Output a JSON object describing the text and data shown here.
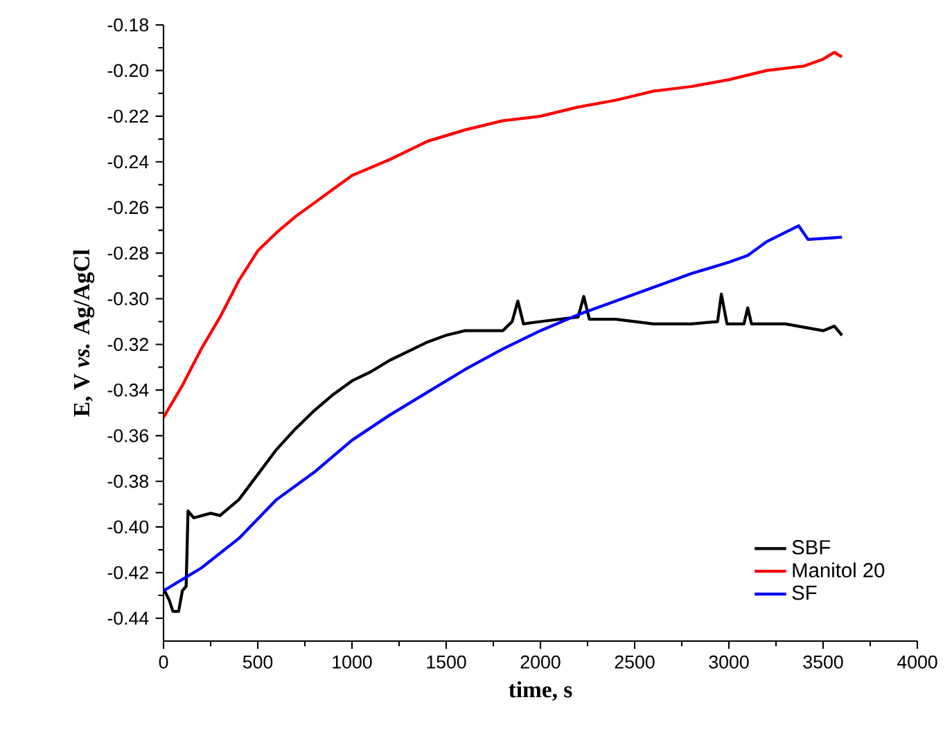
{
  "chart_data": {
    "type": "line",
    "xlabel": "time, s",
    "ylabel": "E, V *vs.* Ag/AgCl",
    "xlim": [
      0,
      4000
    ],
    "ylim": [
      -0.45,
      -0.18
    ],
    "xticks": [
      0,
      500,
      1000,
      1500,
      2000,
      2500,
      3000,
      3500,
      4000
    ],
    "yticks": [
      {
        "value": -0.44,
        "label": "-0.44"
      },
      {
        "value": -0.42,
        "label": "-0.42"
      },
      {
        "value": -0.4,
        "label": "-0.40"
      },
      {
        "value": -0.38,
        "label": "-0.38"
      },
      {
        "value": -0.36,
        "label": "-0.36"
      },
      {
        "value": -0.34,
        "label": "-0.34"
      },
      {
        "value": -0.32,
        "label": "-0.32"
      },
      {
        "value": -0.3,
        "label": "-0.30"
      },
      {
        "value": -0.28,
        "label": "-0.28"
      },
      {
        "value": -0.26,
        "label": "-0.26"
      },
      {
        "value": -0.24,
        "label": "-0.24"
      },
      {
        "value": -0.22,
        "label": "-0.22"
      },
      {
        "value": -0.2,
        "label": "-0.20"
      },
      {
        "value": -0.18,
        "label": "-0.18"
      }
    ],
    "grid": false,
    "legend": "bottom right",
    "marker": "none",
    "line_style": "solid",
    "series": [
      {
        "name": "SBF",
        "color": "#000000",
        "x": [
          0,
          30,
          50,
          80,
          100,
          120,
          130,
          160,
          250,
          300,
          400,
          500,
          600,
          700,
          800,
          900,
          1000,
          1100,
          1200,
          1300,
          1400,
          1500,
          1600,
          1800,
          1850,
          1880,
          1910,
          2000,
          2200,
          2230,
          2260,
          2400,
          2600,
          2800,
          2940,
          2960,
          2990,
          3080,
          3100,
          3120,
          3300,
          3500,
          3560,
          3600
        ],
        "values": [
          -0.427,
          -0.432,
          -0.437,
          -0.437,
          -0.428,
          -0.426,
          -0.393,
          -0.396,
          -0.394,
          -0.395,
          -0.388,
          -0.377,
          -0.366,
          -0.357,
          -0.349,
          -0.342,
          -0.336,
          -0.332,
          -0.327,
          -0.323,
          -0.319,
          -0.316,
          -0.314,
          -0.314,
          -0.31,
          -0.301,
          -0.311,
          -0.31,
          -0.308,
          -0.299,
          -0.309,
          -0.309,
          -0.311,
          -0.311,
          -0.31,
          -0.298,
          -0.311,
          -0.311,
          -0.304,
          -0.311,
          -0.311,
          -0.314,
          -0.312,
          -0.316
        ]
      },
      {
        "name": "Manitol 20",
        "color": "#ff0000",
        "x": [
          0,
          100,
          200,
          300,
          400,
          500,
          600,
          700,
          800,
          900,
          1000,
          1200,
          1400,
          1600,
          1800,
          2000,
          2200,
          2400,
          2600,
          2800,
          3000,
          3200,
          3400,
          3500,
          3560,
          3600
        ],
        "values": [
          -0.352,
          -0.338,
          -0.322,
          -0.308,
          -0.292,
          -0.279,
          -0.271,
          -0.264,
          -0.258,
          -0.252,
          -0.246,
          -0.239,
          -0.231,
          -0.226,
          -0.222,
          -0.22,
          -0.216,
          -0.213,
          -0.209,
          -0.207,
          -0.204,
          -0.2,
          -0.198,
          -0.195,
          -0.192,
          -0.194
        ]
      },
      {
        "name": "SF",
        "color": "#0000ff",
        "x": [
          0,
          200,
          400,
          600,
          800,
          1000,
          1200,
          1400,
          1600,
          1800,
          2000,
          2200,
          2400,
          2600,
          2800,
          3000,
          3100,
          3200,
          3370,
          3420,
          3600
        ],
        "values": [
          -0.428,
          -0.418,
          -0.405,
          -0.388,
          -0.376,
          -0.362,
          -0.351,
          -0.341,
          -0.331,
          -0.322,
          -0.314,
          -0.307,
          -0.301,
          -0.295,
          -0.289,
          -0.284,
          -0.281,
          -0.275,
          -0.268,
          -0.274,
          -0.273
        ]
      }
    ]
  }
}
